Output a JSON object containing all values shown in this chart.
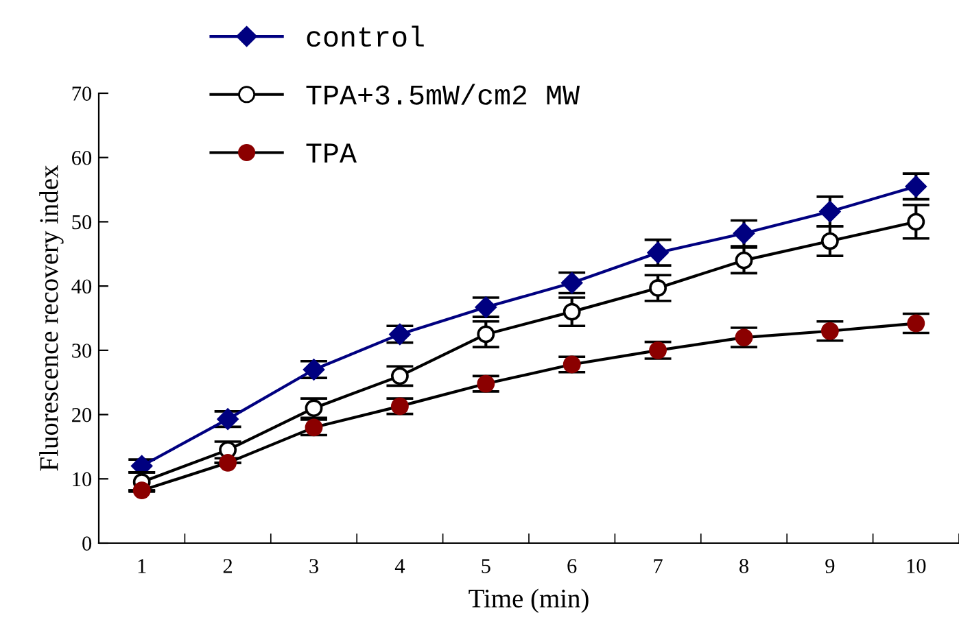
{
  "chart_data": {
    "type": "line",
    "xlabel": "Time (min)",
    "ylabel": "Fluorescence recovery index",
    "categories": [
      "1",
      "2",
      "3",
      "4",
      "5",
      "6",
      "7",
      "8",
      "9",
      "10"
    ],
    "ylim": [
      0,
      70
    ],
    "yticks": [
      0,
      10,
      20,
      30,
      40,
      50,
      60,
      70
    ],
    "legend": "top left",
    "grid": false,
    "series": [
      {
        "name": "control",
        "color": "#000080",
        "marker": "diamond",
        "values": [
          12,
          19.3,
          27,
          32.5,
          36.7,
          40.5,
          45.2,
          48.2,
          51.6,
          55.5
        ],
        "errors": [
          1,
          1.2,
          1.3,
          1.3,
          1.5,
          1.6,
          2,
          2,
          2.3,
          2
        ]
      },
      {
        "name": "TPA+3.5mW/cm2 MW",
        "color": "#000000",
        "marker": "circle",
        "values": [
          9.5,
          14.5,
          21,
          26,
          32.5,
          36,
          39.7,
          44,
          47,
          50
        ],
        "errors": [
          1.5,
          1.3,
          1.5,
          1.5,
          2,
          2.2,
          2,
          2,
          2.3,
          2.6
        ]
      },
      {
        "name": "TPA",
        "color": "#000000",
        "marker": "circle",
        "values": [
          8.2,
          12.5,
          18,
          21.3,
          24.8,
          27.8,
          30,
          32,
          33,
          34.2
        ],
        "errors": [
          null,
          null,
          1.2,
          1.2,
          1.2,
          1.2,
          1.3,
          1.5,
          1.5,
          1.5
        ]
      }
    ]
  }
}
